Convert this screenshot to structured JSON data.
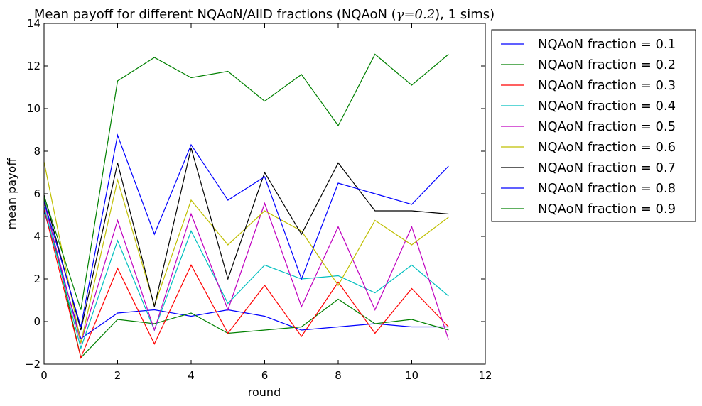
{
  "chart_data": {
    "type": "line",
    "title_prefix": "Mean payoff for different NQAoN/AllD fractions (NQAoN (",
    "title_math": "γ=0.2",
    "title_suffix": "), 1 sims)",
    "xlabel": "round",
    "ylabel": "mean payoff",
    "xlim": [
      0,
      12
    ],
    "ylim": [
      -2,
      14
    ],
    "xticks": [
      "0",
      "2",
      "4",
      "6",
      "8",
      "10",
      "12"
    ],
    "yticks": [
      "−2",
      "0",
      "2",
      "4",
      "6",
      "8",
      "10",
      "12",
      "14"
    ],
    "grid": false,
    "legend_position": "outside-right",
    "x": [
      0,
      1,
      2,
      3,
      4,
      5,
      6,
      7,
      8,
      9,
      10,
      11
    ],
    "series": [
      {
        "name": "NQAoN fraction = 0.1",
        "color": "#0000ff",
        "values": [
          5.2,
          -0.8,
          0.4,
          0.55,
          0.25,
          0.55,
          0.25,
          -0.4,
          -0.25,
          -0.1,
          -0.25,
          -0.25
        ]
      },
      {
        "name": "NQAoN fraction = 0.2",
        "color": "#008000",
        "values": [
          5.8,
          -1.7,
          0.1,
          -0.1,
          0.4,
          -0.55,
          -0.4,
          -0.25,
          1.05,
          -0.1,
          0.1,
          -0.4
        ]
      },
      {
        "name": "NQAoN fraction = 0.3",
        "color": "#ff0000",
        "values": [
          5.3,
          -1.7,
          2.5,
          -1.05,
          2.65,
          -0.55,
          1.7,
          -0.7,
          1.85,
          -0.55,
          1.55,
          -0.25
        ]
      },
      {
        "name": "NQAoN fraction = 0.4",
        "color": "#00bfbf",
        "values": [
          5.4,
          -1.25,
          3.8,
          -0.4,
          4.25,
          0.85,
          2.65,
          2.0,
          2.15,
          1.35,
          2.65,
          1.2
        ]
      },
      {
        "name": "NQAoN fraction = 0.5",
        "color": "#bf00bf",
        "values": [
          5.6,
          -1.0,
          4.75,
          -0.4,
          5.05,
          0.55,
          5.55,
          0.7,
          4.45,
          0.55,
          4.45,
          -0.85
        ]
      },
      {
        "name": "NQAoN fraction = 0.6",
        "color": "#bfbf00",
        "values": [
          7.5,
          -1.0,
          6.65,
          0.75,
          5.7,
          3.6,
          5.2,
          4.25,
          1.7,
          4.75,
          3.6,
          4.9
        ]
      },
      {
        "name": "NQAoN fraction = 0.7",
        "color": "#000000",
        "values": [
          5.95,
          -0.4,
          7.45,
          0.7,
          8.15,
          2.0,
          7.0,
          4.1,
          7.45,
          5.2,
          5.2,
          5.05
        ]
      },
      {
        "name": "NQAoN fraction = 0.8",
        "color": "#0000ff",
        "values": [
          5.65,
          -0.25,
          8.75,
          4.1,
          8.3,
          5.7,
          6.8,
          2.0,
          6.5,
          6.0,
          5.5,
          7.3
        ]
      },
      {
        "name": "NQAoN fraction = 0.9",
        "color": "#008000",
        "values": [
          5.9,
          0.55,
          11.3,
          12.4,
          11.45,
          11.75,
          10.35,
          11.6,
          9.2,
          12.55,
          11.1,
          12.55
        ]
      }
    ]
  }
}
